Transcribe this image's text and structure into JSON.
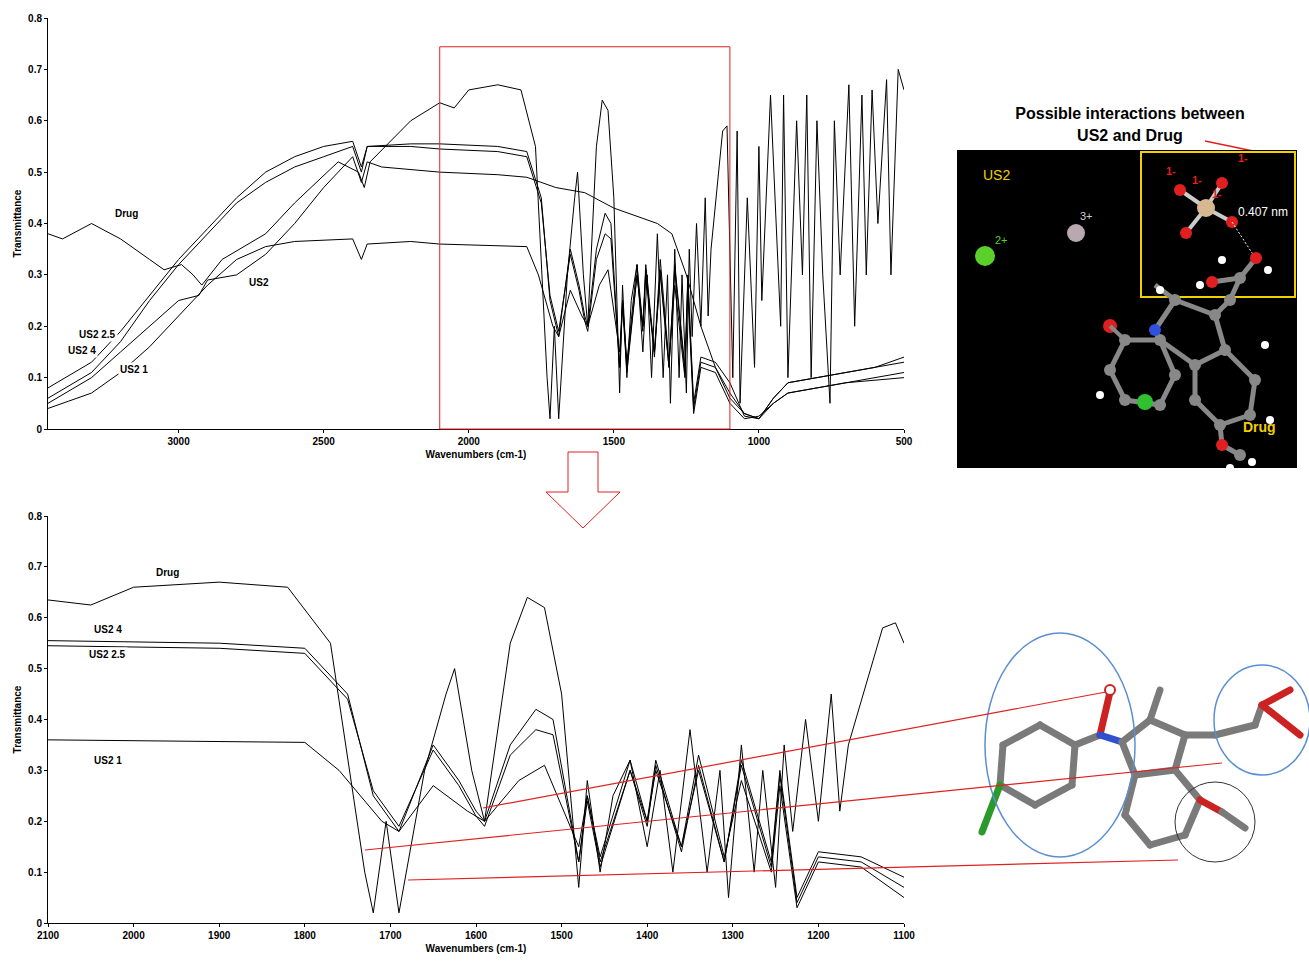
{
  "chart_data": [
    {
      "type": "line",
      "x_label": "Wavenumbers (cm-1)",
      "y_label": "Transmittance",
      "xlim": [
        3450,
        500
      ],
      "xticks": [
        3000,
        2500,
        2000,
        1500,
        1000,
        500
      ],
      "ylim": [
        0,
        0.8
      ],
      "yticks": [
        0,
        0.1,
        0.2,
        0.3,
        0.4,
        0.5,
        0.6,
        0.7,
        0.8
      ],
      "grid": false,
      "series": [
        {
          "name": "Drug",
          "color": "#000000",
          "x": [
            3450,
            3400,
            3300,
            3200,
            3100,
            3050,
            2990,
            2950,
            2920,
            2850,
            2700,
            2600,
            2450,
            2380,
            2360,
            2340,
            2200,
            2100,
            2050,
            2000,
            1900,
            1820,
            1770,
            1730,
            1720,
            1705,
            1690,
            1660,
            1635,
            1625,
            1605,
            1590,
            1560,
            1540,
            1520,
            1500,
            1480,
            1470,
            1455,
            1440,
            1420,
            1400,
            1385,
            1370,
            1350,
            1330,
            1315,
            1305,
            1290,
            1275,
            1265,
            1250,
            1240,
            1230,
            1215,
            1200,
            1185,
            1175,
            1165,
            1125,
            1110,
            1090,
            1075,
            1065,
            1040,
            1015,
            1000,
            990,
            960,
            925,
            915,
            900,
            870,
            850,
            835,
            820,
            800,
            780,
            755,
            740,
            720,
            690,
            670,
            645,
            630,
            610,
            590,
            560,
            545,
            520,
            500
          ],
          "values": [
            0.38,
            0.37,
            0.4,
            0.37,
            0.33,
            0.31,
            0.32,
            0.3,
            0.28,
            0.33,
            0.38,
            0.44,
            0.52,
            0.5,
            0.47,
            0.52,
            0.6,
            0.635,
            0.625,
            0.66,
            0.67,
            0.66,
            0.55,
            0.1,
            0.02,
            0.2,
            0.02,
            0.3,
            0.45,
            0.5,
            0.3,
            0.2,
            0.55,
            0.64,
            0.62,
            0.45,
            0.07,
            0.28,
            0.1,
            0.25,
            0.32,
            0.15,
            0.3,
            0.1,
            0.38,
            0.1,
            0.3,
            0.05,
            0.35,
            0.1,
            0.3,
            0.07,
            0.35,
            0.18,
            0.4,
            0.2,
            0.45,
            0.22,
            0.35,
            0.58,
            0.59,
            0.1,
            0.58,
            0.05,
            0.45,
            0.12,
            0.55,
            0.25,
            0.65,
            0.2,
            0.65,
            0.1,
            0.6,
            0.3,
            0.65,
            0.1,
            0.6,
            0.3,
            0.05,
            0.6,
            0.3,
            0.67,
            0.2,
            0.65,
            0.3,
            0.66,
            0.4,
            0.68,
            0.3,
            0.7,
            0.66
          ]
        },
        {
          "name": "US2",
          "color": "#000000",
          "x": [
            3450,
            3300,
            3200,
            3100,
            3000,
            2930,
            2900,
            2800,
            2700,
            2600,
            2500,
            2400,
            2370,
            2350,
            2300,
            2100,
            1900,
            1800,
            1750,
            1700,
            1600,
            1500,
            1400,
            1350,
            1300,
            1250,
            1200,
            1150,
            1100,
            1050,
            1000,
            950,
            900,
            800,
            700,
            600,
            500
          ],
          "values": [
            0.05,
            0.1,
            0.15,
            0.2,
            0.25,
            0.26,
            0.29,
            0.3,
            0.34,
            0.4,
            0.47,
            0.53,
            0.48,
            0.52,
            0.51,
            0.5,
            0.495,
            0.49,
            0.48,
            0.47,
            0.46,
            0.43,
            0.41,
            0.4,
            0.38,
            0.3,
            0.2,
            0.12,
            0.06,
            0.03,
            0.02,
            0.06,
            0.09,
            0.1,
            0.11,
            0.12,
            0.13
          ]
        },
        {
          "name": "US2 1",
          "color": "#000000",
          "x": [
            3450,
            3300,
            3200,
            3100,
            3000,
            2900,
            2800,
            2700,
            2600,
            2400,
            2370,
            2350,
            2200,
            2100,
            1800,
            1760,
            1710,
            1690,
            1650,
            1610,
            1590,
            1550,
            1520,
            1480,
            1470,
            1455,
            1420,
            1400,
            1390,
            1360,
            1340,
            1310,
            1290,
            1255,
            1245,
            1225,
            1200,
            1150,
            1100,
            1050,
            1000,
            950,
            900,
            800,
            700,
            600,
            500
          ],
          "values": [
            0.04,
            0.07,
            0.11,
            0.16,
            0.22,
            0.28,
            0.33,
            0.355,
            0.365,
            0.37,
            0.33,
            0.36,
            0.365,
            0.36,
            0.355,
            0.3,
            0.2,
            0.18,
            0.27,
            0.22,
            0.2,
            0.28,
            0.31,
            0.15,
            0.25,
            0.13,
            0.32,
            0.2,
            0.3,
            0.15,
            0.33,
            0.13,
            0.28,
            0.1,
            0.27,
            0.03,
            0.12,
            0.11,
            0.05,
            0.02,
            0.025,
            0.05,
            0.07,
            0.08,
            0.09,
            0.1,
            0.11
          ]
        },
        {
          "name": "US2 2.5",
          "color": "#000000",
          "x": [
            3450,
            3300,
            3200,
            3100,
            3000,
            2900,
            2800,
            2700,
            2600,
            2500,
            2400,
            2370,
            2350,
            2200,
            2100,
            1900,
            1800,
            1750,
            1720,
            1690,
            1650,
            1620,
            1600,
            1590,
            1560,
            1530,
            1510,
            1480,
            1470,
            1455,
            1420,
            1400,
            1390,
            1360,
            1340,
            1310,
            1290,
            1255,
            1245,
            1225,
            1200,
            1150,
            1100,
            1050,
            1000,
            950,
            900,
            800,
            700,
            600,
            500
          ],
          "values": [
            0.08,
            0.13,
            0.19,
            0.26,
            0.33,
            0.39,
            0.45,
            0.5,
            0.53,
            0.55,
            0.56,
            0.51,
            0.55,
            0.55,
            0.545,
            0.54,
            0.53,
            0.44,
            0.26,
            0.19,
            0.34,
            0.27,
            0.21,
            0.19,
            0.33,
            0.38,
            0.37,
            0.12,
            0.24,
            0.11,
            0.3,
            0.19,
            0.31,
            0.14,
            0.31,
            0.12,
            0.31,
            0.11,
            0.29,
            0.04,
            0.13,
            0.12,
            0.07,
            0.03,
            0.02,
            0.06,
            0.09,
            0.1,
            0.11,
            0.12,
            0.14
          ]
        },
        {
          "name": "US2 4",
          "color": "#000000",
          "x": [
            3450,
            3300,
            3200,
            3100,
            3000,
            2900,
            2800,
            2700,
            2600,
            2500,
            2400,
            2370,
            2350,
            2200,
            2100,
            1900,
            1800,
            1750,
            1720,
            1690,
            1650,
            1620,
            1600,
            1590,
            1560,
            1530,
            1510,
            1480,
            1470,
            1455,
            1420,
            1400,
            1390,
            1360,
            1340,
            1310,
            1290,
            1255,
            1245,
            1225,
            1200,
            1150,
            1100,
            1050,
            1000,
            950,
            900,
            800,
            700,
            600,
            500
          ],
          "values": [
            0.06,
            0.11,
            0.17,
            0.25,
            0.32,
            0.38,
            0.44,
            0.48,
            0.51,
            0.53,
            0.55,
            0.5,
            0.55,
            0.555,
            0.555,
            0.55,
            0.54,
            0.45,
            0.25,
            0.18,
            0.35,
            0.28,
            0.22,
            0.2,
            0.35,
            0.42,
            0.4,
            0.12,
            0.25,
            0.12,
            0.3,
            0.2,
            0.32,
            0.15,
            0.3,
            0.12,
            0.32,
            0.12,
            0.3,
            0.05,
            0.14,
            0.13,
            0.09,
            0.025,
            0.02,
            0.05,
            0.07,
            0.08,
            0.09,
            0.095,
            0.1
          ]
        }
      ]
    },
    {
      "type": "line",
      "x_label": "Wavenumbers (cm-1)",
      "y_label": "Transmittance",
      "xlim": [
        2100,
        1100
      ],
      "xticks": [
        2100,
        2000,
        1900,
        1800,
        1700,
        1600,
        1500,
        1400,
        1300,
        1200,
        1100
      ],
      "ylim": [
        0,
        0.8
      ],
      "yticks": [
        0,
        0.1,
        0.2,
        0.3,
        0.4,
        0.5,
        0.6,
        0.7,
        0.8
      ],
      "grid": false,
      "series": [
        {
          "name": "Drug",
          "color": "#000000",
          "x": [
            2100,
            2050,
            2000,
            1900,
            1820,
            1770,
            1730,
            1720,
            1705,
            1690,
            1660,
            1635,
            1625,
            1605,
            1590,
            1560,
            1540,
            1520,
            1500,
            1480,
            1470,
            1455,
            1440,
            1420,
            1400,
            1385,
            1370,
            1350,
            1330,
            1315,
            1305,
            1290,
            1275,
            1265,
            1250,
            1240,
            1230,
            1215,
            1200,
            1185,
            1175,
            1165,
            1125,
            1110,
            1100
          ],
          "values": [
            0.635,
            0.625,
            0.66,
            0.67,
            0.66,
            0.55,
            0.1,
            0.02,
            0.2,
            0.02,
            0.3,
            0.45,
            0.5,
            0.3,
            0.2,
            0.55,
            0.64,
            0.62,
            0.45,
            0.07,
            0.28,
            0.1,
            0.25,
            0.32,
            0.15,
            0.3,
            0.1,
            0.38,
            0.1,
            0.3,
            0.05,
            0.35,
            0.1,
            0.3,
            0.07,
            0.35,
            0.18,
            0.4,
            0.2,
            0.45,
            0.22,
            0.35,
            0.58,
            0.59,
            0.55
          ]
        },
        {
          "name": "US2 4",
          "color": "#000000",
          "x": [
            2100,
            1900,
            1800,
            1750,
            1720,
            1690,
            1650,
            1620,
            1600,
            1590,
            1560,
            1530,
            1510,
            1480,
            1470,
            1455,
            1420,
            1400,
            1390,
            1360,
            1340,
            1310,
            1290,
            1255,
            1245,
            1225,
            1200,
            1150,
            1100
          ],
          "values": [
            0.555,
            0.55,
            0.54,
            0.45,
            0.25,
            0.18,
            0.35,
            0.28,
            0.22,
            0.2,
            0.35,
            0.42,
            0.4,
            0.12,
            0.25,
            0.12,
            0.3,
            0.2,
            0.32,
            0.15,
            0.3,
            0.12,
            0.32,
            0.12,
            0.3,
            0.05,
            0.14,
            0.13,
            0.09
          ]
        },
        {
          "name": "US2 2.5",
          "color": "#000000",
          "x": [
            2100,
            1900,
            1800,
            1750,
            1720,
            1690,
            1650,
            1620,
            1600,
            1590,
            1560,
            1530,
            1510,
            1480,
            1470,
            1455,
            1420,
            1400,
            1390,
            1360,
            1340,
            1310,
            1290,
            1255,
            1245,
            1225,
            1200,
            1150,
            1100
          ],
          "values": [
            0.545,
            0.54,
            0.53,
            0.44,
            0.26,
            0.19,
            0.34,
            0.27,
            0.21,
            0.19,
            0.33,
            0.38,
            0.37,
            0.12,
            0.24,
            0.11,
            0.3,
            0.19,
            0.31,
            0.14,
            0.31,
            0.12,
            0.31,
            0.11,
            0.29,
            0.04,
            0.13,
            0.12,
            0.07
          ]
        },
        {
          "name": "US2 1",
          "color": "#000000",
          "x": [
            2100,
            1800,
            1760,
            1710,
            1690,
            1650,
            1610,
            1590,
            1550,
            1520,
            1480,
            1470,
            1455,
            1420,
            1400,
            1390,
            1360,
            1340,
            1310,
            1290,
            1255,
            1245,
            1225,
            1200,
            1150,
            1100
          ],
          "values": [
            0.36,
            0.355,
            0.3,
            0.2,
            0.18,
            0.27,
            0.22,
            0.2,
            0.28,
            0.31,
            0.15,
            0.25,
            0.13,
            0.32,
            0.2,
            0.3,
            0.15,
            0.33,
            0.13,
            0.28,
            0.1,
            0.27,
            0.03,
            0.12,
            0.11,
            0.05
          ]
        }
      ]
    }
  ],
  "interaction_panel": {
    "title_lines": [
      "Possible interactions between",
      "US2 and Drug"
    ],
    "material_label": "US2",
    "cation_labels": [
      "2+",
      "3+"
    ],
    "anion_charges": [
      "1-",
      "1-",
      "1-",
      "1-"
    ],
    "distance_label": "0.407 nm",
    "drug_label": "Drug"
  }
}
